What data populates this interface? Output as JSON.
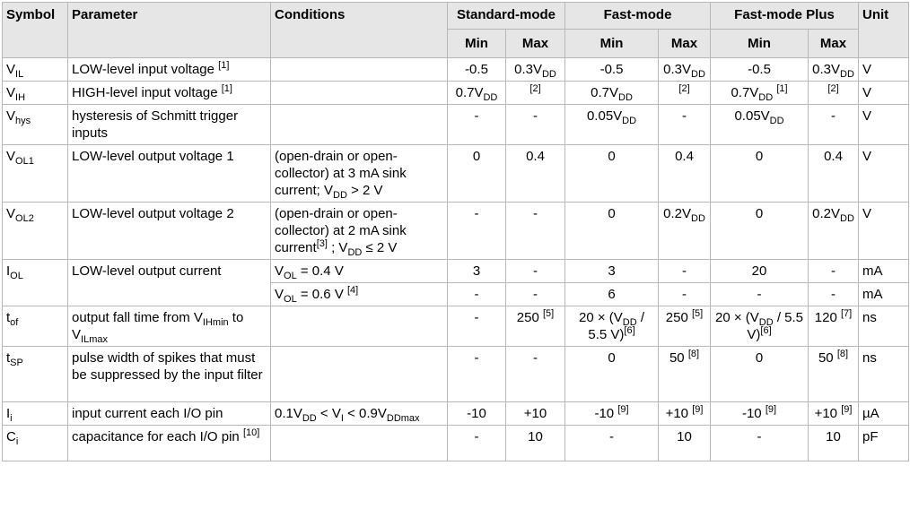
{
  "headers": {
    "symbol": "Symbol",
    "parameter": "Parameter",
    "conditions": "Conditions",
    "standard_mode": "Standard-mode",
    "fast_mode": "Fast-mode",
    "fast_mode_plus": "Fast-mode Plus",
    "unit": "Unit",
    "min": "Min",
    "max": "Max"
  },
  "rows": [
    {
      "symbol": {
        "base": "V",
        "sub": "IL"
      },
      "parameter": "LOW-level input voltage",
      "parameter_sup": "[1]",
      "condition": "",
      "values": [
        {
          "t": "-0.5"
        },
        {
          "t": "0.3V",
          "sub": "DD"
        },
        {
          "t": "-0.5"
        },
        {
          "t": "0.3V",
          "sub": "DD"
        },
        {
          "t": "-0.5"
        },
        {
          "t": "0.3V",
          "sub": "DD"
        }
      ],
      "unit": "V"
    },
    {
      "symbol": {
        "base": "V",
        "sub": "IH"
      },
      "parameter": "HIGH-level input voltage",
      "parameter_sup": "[1]",
      "condition": "",
      "values": [
        {
          "t": "0.7V",
          "sub": "DD"
        },
        {
          "t": "",
          "sup": "[2]"
        },
        {
          "t": "0.7V",
          "sub": "DD"
        },
        {
          "t": "",
          "sup": "[2]"
        },
        {
          "t": "0.7V",
          "sub": "DD",
          "sup": "[1]"
        },
        {
          "t": "",
          "sup": "[2]"
        }
      ],
      "unit": "V"
    },
    {
      "symbol": {
        "base": "V",
        "sub": "hys"
      },
      "parameter": "hysteresis of Schmitt trigger inputs",
      "condition": "",
      "values": [
        {
          "t": "-"
        },
        {
          "t": "-"
        },
        {
          "t": "0.05V",
          "sub": "DD"
        },
        {
          "t": "-"
        },
        {
          "t": "0.05V",
          "sub": "DD"
        },
        {
          "t": "-"
        }
      ],
      "unit": "V"
    },
    {
      "symbol": {
        "base": "V",
        "sub": "OL1"
      },
      "parameter": "LOW-level output voltage 1",
      "condition": "(open-drain or open-collector) at 3 mA sink current; V",
      "condition_sub": "DD",
      "condition_tail": " > 2 V",
      "values": [
        {
          "t": "0"
        },
        {
          "t": "0.4"
        },
        {
          "t": "0"
        },
        {
          "t": "0.4"
        },
        {
          "t": "0"
        },
        {
          "t": "0.4"
        }
      ],
      "unit": "V"
    },
    {
      "symbol": {
        "base": "V",
        "sub": "OL2"
      },
      "parameter": "LOW-level output voltage 2",
      "condition": "(open-drain or open-collector) at 2 mA sink current",
      "condition_sup": "[3]",
      "condition_mid": " ; V",
      "condition_sub": "DD",
      "condition_tail": " ≤ 2 V",
      "values": [
        {
          "t": "-"
        },
        {
          "t": "-"
        },
        {
          "t": "0"
        },
        {
          "t": "0.2V",
          "sub": "DD"
        },
        {
          "t": "0"
        },
        {
          "t": "0.2V",
          "sub": "DD"
        }
      ],
      "unit": "V"
    },
    {
      "symbol": {
        "base": "I",
        "sub": "OL"
      },
      "parameter": "LOW-level output current",
      "condition": "V",
      "condition_sub": "OL",
      "condition_tail": " = 0.4 V",
      "values": [
        {
          "t": "3"
        },
        {
          "t": "-"
        },
        {
          "t": "3"
        },
        {
          "t": "-"
        },
        {
          "t": "20"
        },
        {
          "t": "-"
        }
      ],
      "unit": "mA"
    },
    {
      "symbol": {
        "base": "",
        "sub": ""
      },
      "parameter": "",
      "condition": "V",
      "condition_sub": "OL",
      "condition_tail": " = 0.6 V ",
      "condition_sup": "[4]",
      "values": [
        {
          "t": "-"
        },
        {
          "t": "-"
        },
        {
          "t": "6"
        },
        {
          "t": "-"
        },
        {
          "t": "-"
        },
        {
          "t": "-"
        }
      ],
      "unit": "mA"
    },
    {
      "symbol": {
        "base": "t",
        "sub": "of"
      },
      "parameter": "output fall time from V",
      "parameter_sub": "IHmin",
      "parameter_mid": " to V",
      "parameter_sub2": "ILmax",
      "condition": "",
      "values": [
        {
          "t": "-"
        },
        {
          "t": "250 ",
          "sup": "[5]"
        },
        {
          "t": "20 × (V",
          "sub": "DD",
          "t2": " / 5.5 V)",
          "sup": "[6]"
        },
        {
          "t": "250 ",
          "sup": "[5]"
        },
        {
          "t": "20 × (V",
          "sub": "DD",
          "t2": " / 5.5 V)",
          "sup": "[6]"
        },
        {
          "t": "120 ",
          "sup": "[7]"
        }
      ],
      "unit": "ns"
    },
    {
      "symbol": {
        "base": "t",
        "sub": "SP"
      },
      "parameter": "pulse width of spikes that must be suppressed by the input filter",
      "condition": "",
      "values": [
        {
          "t": "-"
        },
        {
          "t": "-"
        },
        {
          "t": "0"
        },
        {
          "t": "50 ",
          "sup": "[8]"
        },
        {
          "t": "0"
        },
        {
          "t": "50 ",
          "sup": "[8]"
        }
      ],
      "unit": "ns"
    },
    {
      "symbol": {
        "base": "I",
        "sub": "i"
      },
      "parameter": "input current each I/O pin",
      "condition": "0.1V",
      "condition_sub": "DD",
      "condition_mid": " < V",
      "condition_sub2": "I",
      "condition_mid2": " < 0.9V",
      "condition_sub3": "DDmax",
      "values": [
        {
          "t": "-10"
        },
        {
          "t": "+10"
        },
        {
          "t": "-10 ",
          "sup": "[9]"
        },
        {
          "t": "+10 ",
          "sup": "[9]"
        },
        {
          "t": "-10 ",
          "sup": "[9]"
        },
        {
          "t": "+10 ",
          "sup": "[9]"
        }
      ],
      "unit": "µA"
    },
    {
      "symbol": {
        "base": "C",
        "sub": "i"
      },
      "parameter": "capacitance for each I/O pin",
      "parameter_sup": "[10]",
      "condition": "",
      "values": [
        {
          "t": "-"
        },
        {
          "t": "10"
        },
        {
          "t": "-"
        },
        {
          "t": "10"
        },
        {
          "t": "-"
        },
        {
          "t": "10"
        }
      ],
      "unit": "pF"
    }
  ]
}
